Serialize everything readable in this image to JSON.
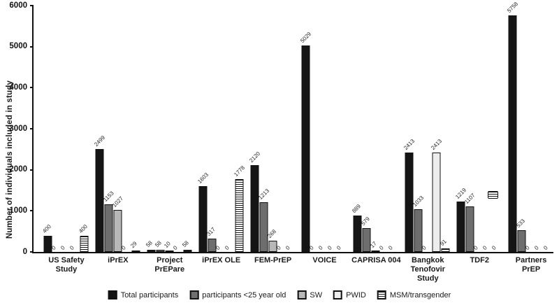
{
  "figure": {
    "background": "#ffffff"
  },
  "chart_data": {
    "type": "bar",
    "title": "",
    "xlabel": "",
    "ylabel": "Number of individuals included in study",
    "ylim": [
      0,
      6000
    ],
    "yticks": [
      0,
      1000,
      2000,
      3000,
      4000,
      5000,
      6000
    ],
    "grid": false,
    "legend_position": "bottom",
    "bar_value_labels_rotation_deg": -45,
    "categories": [
      "US Safety Study",
      "iPrEX",
      "Project PrEPare",
      "iPrEX OLE",
      "FEM-PrEP",
      "VOICE",
      "CAPRISA 004",
      "Bangkok Tenofovir Study",
      "TDF2",
      "Partners PrEP"
    ],
    "category_label_lines": [
      [
        "US Safety",
        "Study"
      ],
      [
        "iPrEX"
      ],
      [
        "Project",
        "PrEPare"
      ],
      [
        "iPrEX OLE"
      ],
      [
        "FEM-PrEP"
      ],
      [
        "VOICE"
      ],
      [
        "CAPRISA 004"
      ],
      [
        "Bangkok",
        "Tenofovir",
        "Study"
      ],
      [
        "TDF2"
      ],
      [
        "Partners",
        "PrEP"
      ]
    ],
    "series": [
      {
        "name": "Total participants",
        "style": "black",
        "color": "#151515",
        "values": [
          400,
          2499,
          58,
          1603,
          2120,
          5029,
          889,
          2413,
          1219,
          5758
        ]
      },
      {
        "name": "participants <25 year old",
        "style": "darkgray",
        "color": "#6e6e6e",
        "values": [
          0,
          1153,
          58,
          317,
          1213,
          0,
          579,
          1033,
          1107,
          533
        ]
      },
      {
        "name": "SW",
        "style": "lightgray",
        "color": "#b8b8b8",
        "values": [
          0,
          1027,
          10,
          0,
          268,
          0,
          17,
          0,
          0,
          0
        ]
      },
      {
        "name": "PWID",
        "style": "white",
        "color": "#ededed",
        "values": [
          0,
          0,
          0,
          0,
          0,
          0,
          0,
          2413,
          0,
          0
        ]
      },
      {
        "name": "MSM/transgender",
        "style": "hstripe",
        "color": "#ffffff",
        "values": [
          400,
          29,
          58,
          1778,
          0,
          0,
          0,
          91,
          0,
          0
        ]
      }
    ],
    "annotations": [
      {
        "type": "floating-hatched-box",
        "category": "TDF2",
        "approx_value": 1300
      }
    ]
  }
}
